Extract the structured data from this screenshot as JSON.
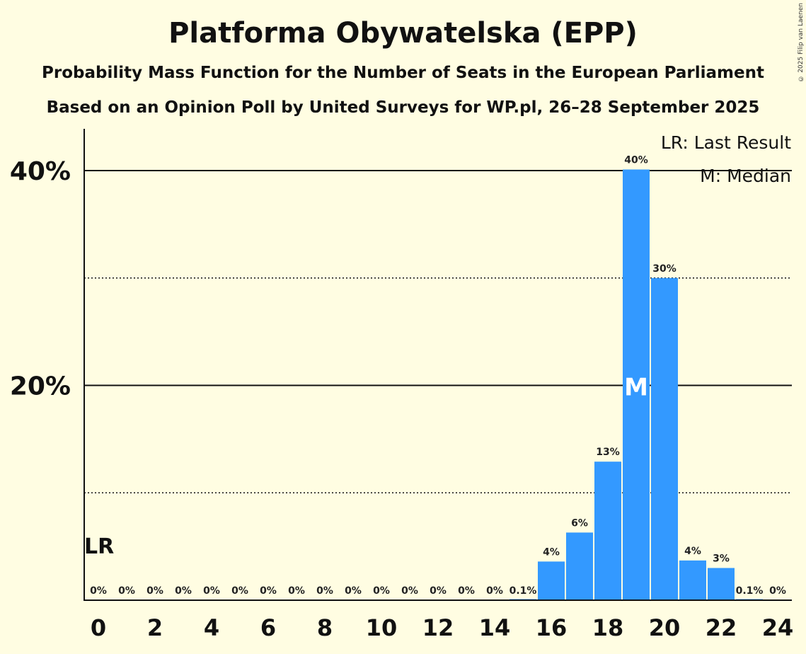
{
  "chart_data": {
    "type": "bar",
    "title": "Platforma Obywatelska (EPP)",
    "subtitle": "Probability Mass Function for the Number of Seats in the European Parliament",
    "subtitle2": "Based on an Opinion Poll by United Surveys for WP.pl, 26–28 September 2025",
    "copyright": "© 2025 Filip van Laenen",
    "xlabel": "",
    "ylabel": "",
    "x": [
      0,
      1,
      2,
      3,
      4,
      5,
      6,
      7,
      8,
      9,
      10,
      11,
      12,
      13,
      14,
      15,
      16,
      17,
      18,
      19,
      20,
      21,
      22,
      23,
      24
    ],
    "values": [
      0,
      0,
      0,
      0,
      0,
      0,
      0,
      0,
      0,
      0,
      0,
      0,
      0,
      0,
      0,
      0.1,
      3.6,
      6.3,
      12.9,
      40.1,
      30.0,
      3.7,
      3.0,
      0.1,
      0
    ],
    "labels": [
      "0%",
      "0%",
      "0%",
      "0%",
      "0%",
      "0%",
      "0%",
      "0%",
      "0%",
      "0%",
      "0%",
      "0%",
      "0%",
      "0%",
      "0%",
      "0.1%",
      "4%",
      "6%",
      "13%",
      "40%",
      "30%",
      "4%",
      "3%",
      "0.1%",
      "0%"
    ],
    "xticks": [
      "0",
      "2",
      "4",
      "6",
      "8",
      "10",
      "12",
      "14",
      "16",
      "18",
      "20",
      "22",
      "24"
    ],
    "yticks": [
      {
        "value": 20,
        "label": "20%"
      },
      {
        "value": 40,
        "label": "40%"
      }
    ],
    "minor_gridlines": [
      10,
      30
    ],
    "ylim": [
      0,
      44
    ],
    "last_result_seat": 0,
    "last_result_label": "LR",
    "median_seat": 19,
    "median_label": "M",
    "legend": [
      "LR: Last Result",
      "M: Median"
    ],
    "legend_position": "top-right",
    "bar_color": "#3399ff",
    "background": "#fffde2"
  }
}
